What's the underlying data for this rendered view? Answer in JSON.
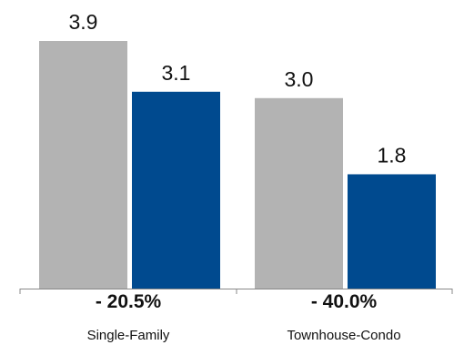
{
  "chart_data": {
    "type": "bar",
    "categories": [
      "Single-Family",
      "Townhouse-Condo"
    ],
    "series": [
      {
        "values": [
          3.9,
          3.0
        ],
        "color": "#b3b3b3"
      },
      {
        "values": [
          3.1,
          1.8
        ],
        "color": "#004a8f"
      }
    ],
    "value_labels": [
      [
        "3.9",
        "3.0"
      ],
      [
        "3.1",
        "1.8"
      ]
    ],
    "percent_change": [
      "- 20.5%",
      "- 40.0%"
    ],
    "ylim": [
      0,
      3.9
    ],
    "grid": false,
    "legend": "none",
    "axis_color": "#888888"
  }
}
